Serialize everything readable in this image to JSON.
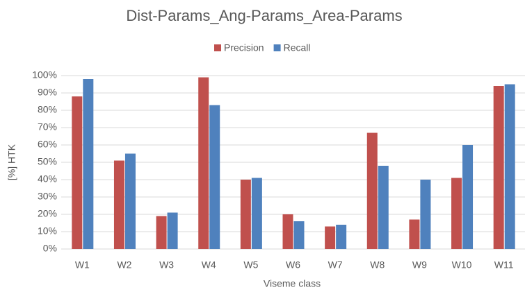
{
  "chart_data": {
    "type": "bar",
    "title": "Dist-Params_Ang-Params_Area-Params",
    "y_label": "[%] HTK",
    "x_label": "Viseme class",
    "categories": [
      "W1",
      "W2",
      "W3",
      "W4",
      "W5",
      "W6",
      "W7",
      "W8",
      "W9",
      "W10",
      "W11"
    ],
    "series": [
      {
        "name": "Precision",
        "color": "#c0504d",
        "values": [
          88,
          51,
          19,
          99,
          40,
          20,
          13,
          67,
          17,
          41,
          94
        ]
      },
      {
        "name": "Recall",
        "color": "#4f81bd",
        "values": [
          98,
          55,
          21,
          83,
          41,
          16,
          14,
          48,
          40,
          60,
          95
        ]
      }
    ],
    "ylim": [
      0,
      100
    ],
    "yticks": [
      {
        "value": 0,
        "label": "0%"
      },
      {
        "value": 10,
        "label": "10%"
      },
      {
        "value": 20,
        "label": "20%"
      },
      {
        "value": 30,
        "label": "30%"
      },
      {
        "value": 40,
        "label": "40%"
      },
      {
        "value": 50,
        "label": "50%"
      },
      {
        "value": 60,
        "label": "60%"
      },
      {
        "value": 70,
        "label": "70%"
      },
      {
        "value": 80,
        "label": "80%"
      },
      {
        "value": 90,
        "label": "90%"
      },
      {
        "value": 100,
        "label": "100%"
      }
    ],
    "grid": true,
    "legend": "top"
  }
}
